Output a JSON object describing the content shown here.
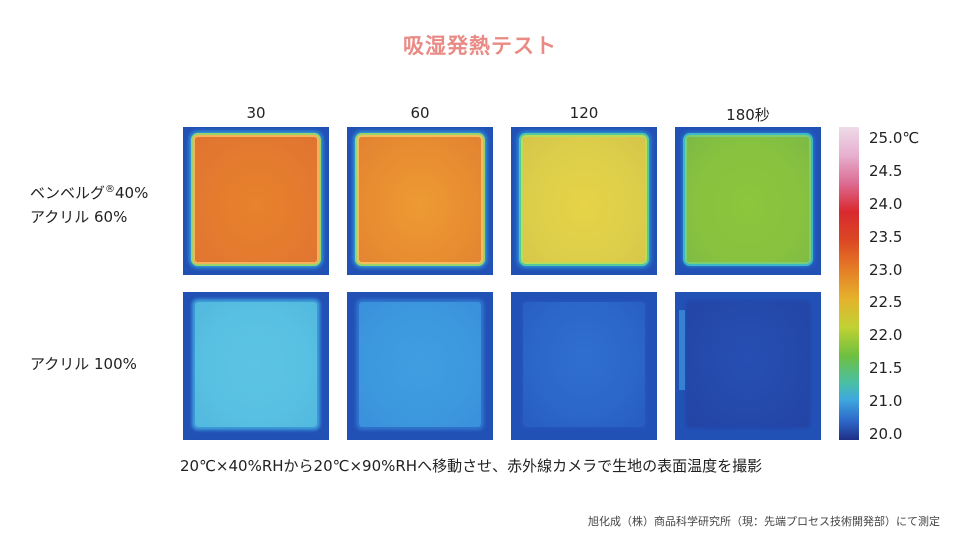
{
  "title": "吸湿発熱テスト",
  "columns": [
    "30",
    "60",
    "120",
    "180秒"
  ],
  "rows": [
    {
      "line1_main": "ベンベルグ",
      "line1_mark": "®",
      "line1_pct": "40%",
      "line2": "アクリル 60%"
    },
    {
      "line1": "アクリル 100%"
    }
  ],
  "scale": {
    "labels": [
      "25.0℃",
      "24.5",
      "24.0",
      "23.5",
      "23.0",
      "22.5",
      "22.0",
      "21.5",
      "21.0",
      "20.0"
    ]
  },
  "caption": "20℃×40%RHから20℃×90%RHへ移動させ、赤外線カメラで生地の表面温度を撮影",
  "credit": "旭化成（株）商品科学研究所（現：先端プロセス技術開発部）にて測定",
  "colors": {
    "title": "#ea8a84",
    "background_tile": "#2251b6"
  }
}
